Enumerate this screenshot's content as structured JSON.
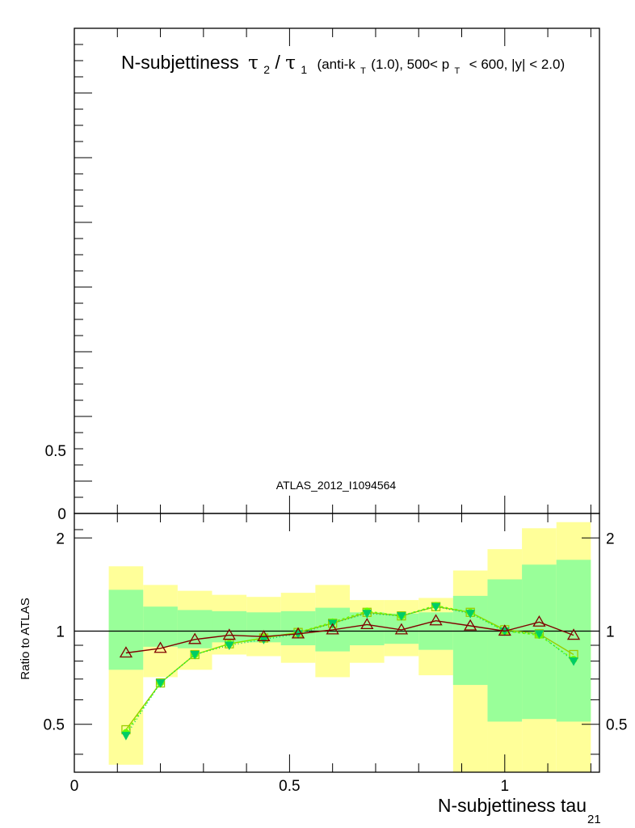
{
  "chart_data": {
    "type": "line",
    "title_main": "N-subjettiness",
    "title_tau2": "τ",
    "title_sub2": "2",
    "title_slash": "/",
    "title_tau1": "τ",
    "title_sub1": "1",
    "title_detail_a": "(anti-k",
    "title_detail_sub_t": "T",
    "title_detail_b": "(1.0), 500< p",
    "title_detail_sub_t2": "T",
    "title_detail_c": "< 600, |y| < 2.0)",
    "analysis_label": "ATLAS_2012_I1094564",
    "xlabel": "N-subjettiness tau",
    "xlabel_sub": "21",
    "ylabel_ratio": "Ratio to ATLAS",
    "main_panel": {
      "ytick_labels": [
        "0.5",
        "0"
      ]
    },
    "ratio_panel": {
      "ylim": [
        0.35,
        2.4
      ],
      "yscale": "log",
      "ytick_labels": [
        "0.5",
        "1",
        "2"
      ],
      "reference_line": 1
    },
    "xlim": [
      0,
      1.22
    ],
    "xtick_labels": [
      "0",
      "0.5",
      "1"
    ],
    "bin_edges": [
      0.08,
      0.16,
      0.24,
      0.32,
      0.4,
      0.48,
      0.56,
      0.64,
      0.72,
      0.8,
      0.88,
      0.96,
      1.04,
      1.12,
      1.2
    ],
    "bands": {
      "yellow": {
        "color": "#ffff99",
        "low": [
          0.37,
          0.71,
          0.75,
          0.84,
          0.83,
          0.79,
          0.71,
          0.79,
          0.83,
          0.72,
          0.35,
          0.35,
          0.35,
          0.35
        ],
        "high": [
          1.62,
          1.41,
          1.35,
          1.31,
          1.29,
          1.33,
          1.41,
          1.26,
          1.26,
          1.28,
          1.57,
          1.84,
          2.15,
          2.25
        ]
      },
      "green": {
        "color": "#99ff99",
        "low": [
          0.75,
          0.89,
          0.88,
          0.92,
          0.92,
          0.9,
          0.86,
          0.9,
          0.91,
          0.87,
          0.67,
          0.51,
          0.52,
          0.51
        ],
        "high": [
          1.36,
          1.2,
          1.17,
          1.16,
          1.15,
          1.16,
          1.19,
          1.15,
          1.14,
          1.15,
          1.3,
          1.47,
          1.64,
          1.7
        ]
      }
    },
    "x": [
      0.12,
      0.2,
      0.28,
      0.36,
      0.44,
      0.52,
      0.6,
      0.68,
      0.76,
      0.84,
      0.92,
      1.0,
      1.08,
      1.16
    ],
    "series": [
      {
        "color": "#99cc00",
        "marker": "square",
        "dash": "",
        "values": [
          0.48,
          0.68,
          0.84,
          0.91,
          0.95,
          0.99,
          1.06,
          1.15,
          1.12,
          1.2,
          1.15,
          1.01,
          0.98,
          0.84
        ]
      },
      {
        "color": "#66ff00",
        "marker": "circle",
        "dash": "3,3",
        "values": [
          0.47,
          0.68,
          0.84,
          0.91,
          0.95,
          0.99,
          1.07,
          1.16,
          1.12,
          1.21,
          1.15,
          1.0,
          0.97,
          0.81
        ]
      },
      {
        "color": "#00cc66",
        "marker": "triangle-down",
        "dash": "1,3",
        "values": [
          0.46,
          0.68,
          0.84,
          0.9,
          0.94,
          0.98,
          1.06,
          1.14,
          1.12,
          1.2,
          1.14,
          1.0,
          0.98,
          0.8
        ]
      },
      {
        "color": "#800000",
        "marker": "triangle",
        "dash": "",
        "values": [
          0.85,
          0.88,
          0.94,
          0.97,
          0.96,
          0.98,
          1.01,
          1.05,
          1.01,
          1.08,
          1.04,
          1.0,
          1.07,
          0.97
        ]
      }
    ]
  }
}
